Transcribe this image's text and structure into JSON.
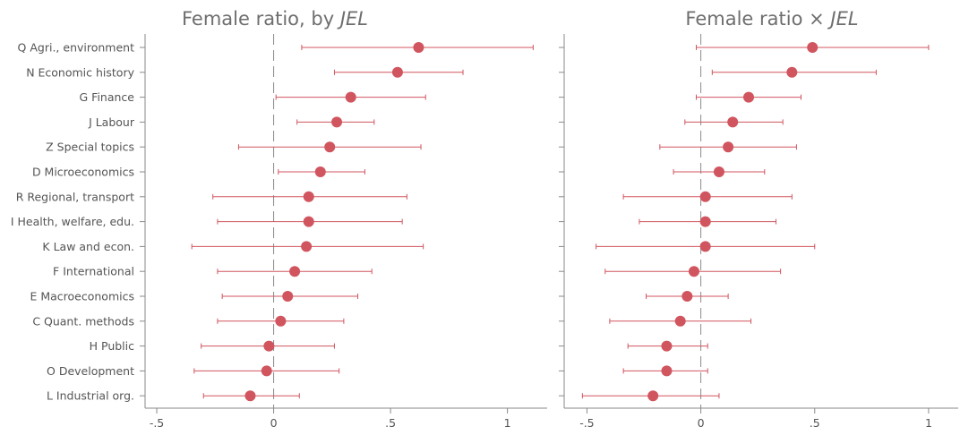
{
  "chart_data": [
    {
      "type": "scatter",
      "variant": "coefficient-plot",
      "title": "Female ratio, by ",
      "title_italic": "JEL",
      "categories": [
        "Q Agri., environment",
        "N Economic history",
        "G Finance",
        "J Labour",
        "Z Special topics",
        "D Microeconomics",
        "R Regional, transport",
        "I Health, welfare, edu.",
        "K Law and econ.",
        "F International",
        "E Macroeconomics",
        "C Quant. methods",
        "H Public",
        "O Development",
        "L Industrial org."
      ],
      "estimates": [
        0.62,
        0.53,
        0.33,
        0.27,
        0.24,
        0.2,
        0.15,
        0.15,
        0.14,
        0.09,
        0.06,
        0.03,
        -0.02,
        -0.03,
        -0.1
      ],
      "ci_low": [
        0.12,
        0.26,
        0.01,
        0.1,
        -0.15,
        0.02,
        -0.26,
        -0.24,
        -0.35,
        -0.24,
        -0.22,
        -0.24,
        -0.31,
        -0.34,
        -0.3
      ],
      "ci_high": [
        1.11,
        0.81,
        0.65,
        0.43,
        0.63,
        0.39,
        0.57,
        0.55,
        0.64,
        0.42,
        0.36,
        0.3,
        0.26,
        0.28,
        0.11
      ],
      "xlim": [
        -0.55,
        1.17
      ],
      "xticks": [
        -0.5,
        0,
        0.5,
        1
      ],
      "xtick_labels": [
        "-.5",
        "0",
        ".5",
        "1"
      ],
      "reference_line": 0,
      "color": "#d0555f",
      "grid": false
    },
    {
      "type": "scatter",
      "variant": "coefficient-plot",
      "title": "Female ratio × ",
      "title_italic": "JEL",
      "categories": [
        "Q Agri., environment",
        "N Economic history",
        "G Finance",
        "J Labour",
        "Z Special topics",
        "D Microeconomics",
        "R Regional, transport",
        "I Health, welfare, edu.",
        "K Law and econ.",
        "F International",
        "E Macroeconomics",
        "C Quant. methods",
        "H Public",
        "O Development",
        "L Industrial org."
      ],
      "estimates": [
        0.49,
        0.4,
        0.21,
        0.14,
        0.12,
        0.08,
        0.02,
        0.02,
        0.02,
        -0.03,
        -0.06,
        -0.09,
        -0.15,
        -0.15,
        -0.21
      ],
      "ci_low": [
        -0.02,
        0.05,
        -0.02,
        -0.07,
        -0.18,
        -0.12,
        -0.34,
        -0.27,
        -0.46,
        -0.42,
        -0.24,
        -0.4,
        -0.32,
        -0.34,
        -0.52
      ],
      "ci_high": [
        1.0,
        0.77,
        0.44,
        0.36,
        0.42,
        0.28,
        0.4,
        0.33,
        0.5,
        0.35,
        0.12,
        0.22,
        0.03,
        0.03,
        0.08
      ],
      "xlim": [
        -0.6,
        1.13
      ],
      "xticks": [
        -0.5,
        0,
        0.5,
        1
      ],
      "xtick_labels": [
        "-.5",
        "0",
        ".5",
        "1"
      ],
      "reference_line": 0,
      "color": "#d0555f",
      "grid": false
    }
  ]
}
